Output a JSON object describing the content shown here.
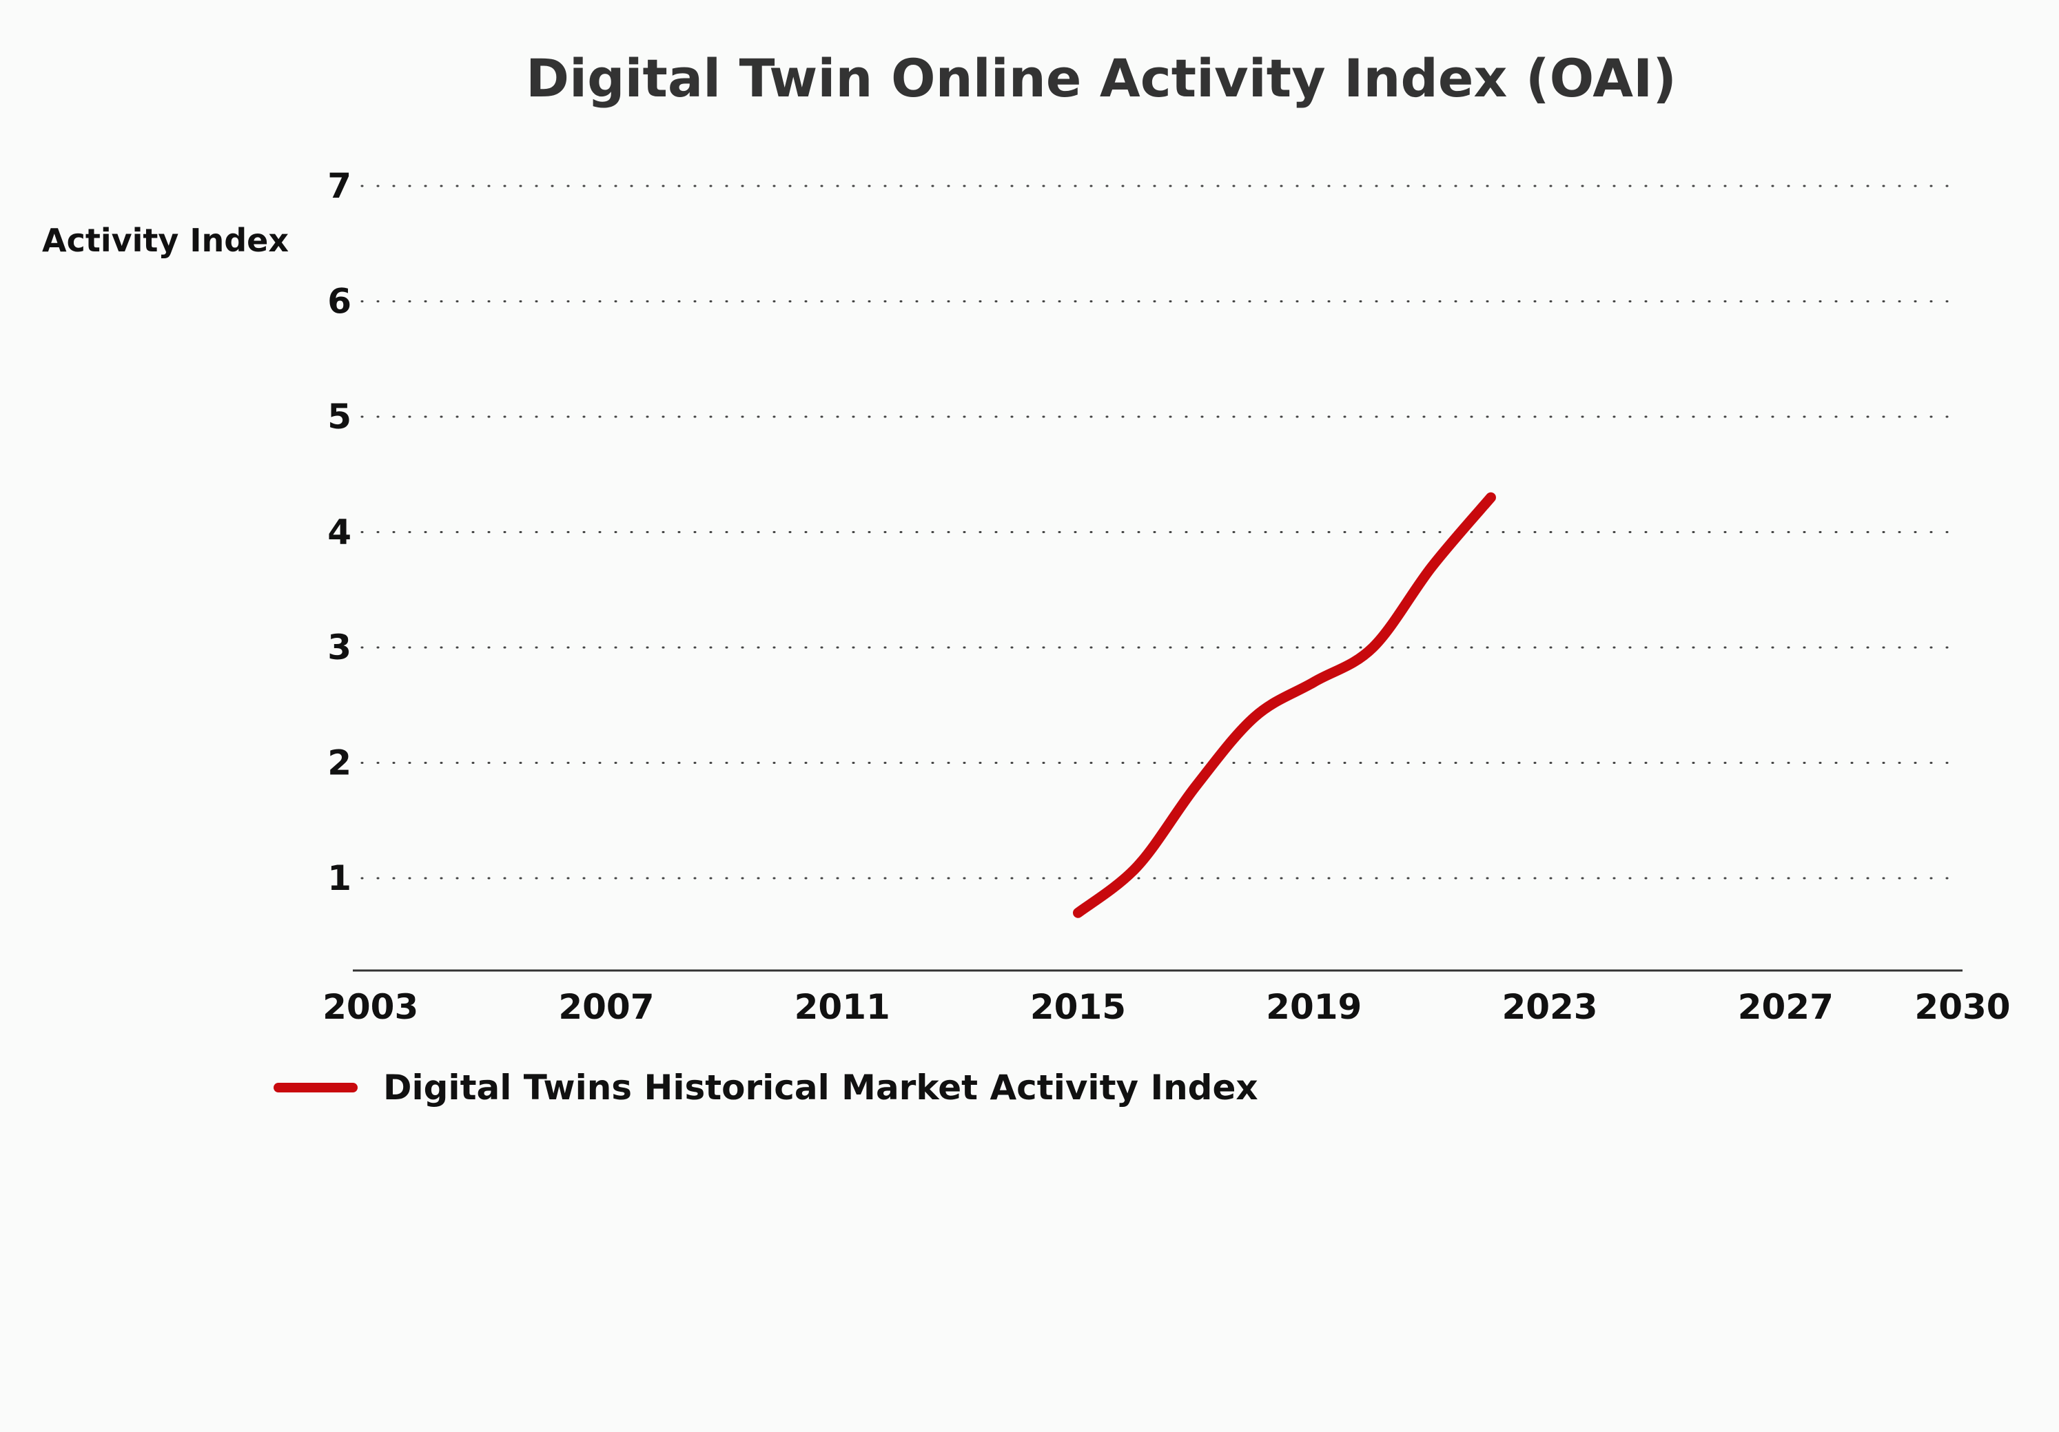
{
  "chart_data": {
    "type": "line",
    "title": "Digital Twin Online Activity Index (OAI)",
    "xlabel": "",
    "ylabel": "Activity Index",
    "xlim": [
      2002.7,
      2030
    ],
    "ylim": [
      0.2,
      7
    ],
    "x_ticks": [
      "2003",
      "2007",
      "2011",
      "2015",
      "2019",
      "2023",
      "2027",
      "2030"
    ],
    "y_ticks": [
      "1",
      "2",
      "3",
      "4",
      "5",
      "6",
      "7"
    ],
    "grid": "horizontal dotted",
    "legend": "bottom-left",
    "series": [
      {
        "name": "Digital Twins Historical Market Activity Index",
        "color": "#c8090d",
        "x": [
          2015,
          2016,
          2017,
          2018,
          2019,
          2020,
          2021,
          2022
        ],
        "values": [
          0.7,
          1.1,
          1.8,
          2.4,
          2.7,
          3.0,
          3.7,
          4.3
        ]
      }
    ]
  }
}
